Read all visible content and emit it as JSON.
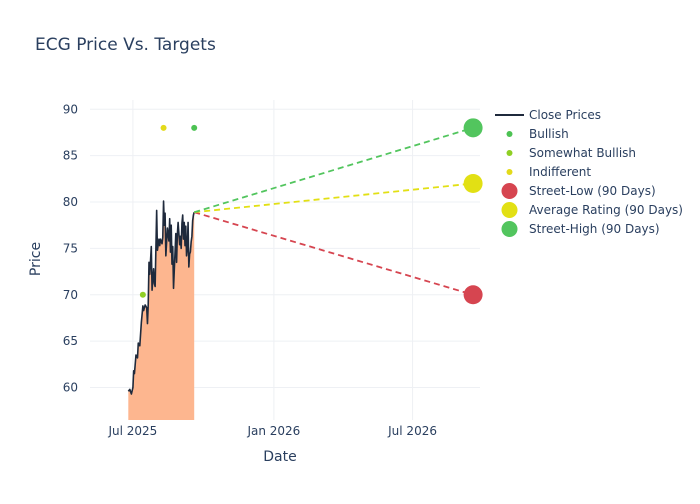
{
  "chart_data": {
    "type": "line",
    "title": "ECG Price Vs. Targets",
    "xlabel": "Date",
    "ylabel": "Price",
    "xlim": [
      "2025-05-06",
      "2026-09-27"
    ],
    "ylim": [
      56.5,
      91
    ],
    "x_ticks": [
      {
        "date": "2025-07-01",
        "label": "Jul 2025"
      },
      {
        "date": "2026-01-01",
        "label": "Jan 2026"
      },
      {
        "date": "2026-07-01",
        "label": "Jul 2026"
      }
    ],
    "y_ticks": [
      60,
      65,
      70,
      75,
      80,
      85,
      90
    ],
    "grid": true,
    "legend_position": "right",
    "colors": {
      "close": "#1f2a3c",
      "fill": "#fdb68f",
      "bullish": "#4cc253",
      "somewhat_bullish": "#8fcf24",
      "indifferent": "#e3da1a",
      "street_low": "#d64550",
      "average": "#e2e014",
      "street_high": "#52c55e",
      "title": "#2a3f5f",
      "grid": "#eef0f4"
    },
    "series": [
      {
        "name": "Close Prices",
        "kind": "line",
        "x": [
          "2025-06-25",
          "2025-06-27",
          "2025-06-29",
          "2025-07-01",
          "2025-07-02",
          "2025-07-03",
          "2025-07-05",
          "2025-07-07",
          "2025-07-08",
          "2025-07-10",
          "2025-07-12",
          "2025-07-14",
          "2025-07-15",
          "2025-07-17",
          "2025-07-19",
          "2025-07-20",
          "2025-07-21",
          "2025-07-22",
          "2025-07-23",
          "2025-07-25",
          "2025-07-26",
          "2025-07-28",
          "2025-07-29",
          "2025-07-30",
          "2025-08-01",
          "2025-08-02",
          "2025-08-04",
          "2025-08-05",
          "2025-08-06",
          "2025-08-08",
          "2025-08-09",
          "2025-08-10",
          "2025-08-11",
          "2025-08-12",
          "2025-08-13",
          "2025-08-15",
          "2025-08-17",
          "2025-08-18",
          "2025-08-19",
          "2025-08-20",
          "2025-08-21",
          "2025-08-22",
          "2025-08-23",
          "2025-08-25",
          "2025-08-26",
          "2025-08-27",
          "2025-08-28",
          "2025-08-29",
          "2025-08-31",
          "2025-09-01",
          "2025-09-02",
          "2025-09-03",
          "2025-09-04",
          "2025-09-05",
          "2025-09-06",
          "2025-09-07",
          "2025-09-08",
          "2025-09-09",
          "2025-09-10",
          "2025-09-11",
          "2025-09-12",
          "2025-09-13",
          "2025-09-14",
          "2025-09-15",
          "2025-09-16",
          "2025-09-17",
          "2025-09-18",
          "2025-09-19"
        ],
        "y": [
          59.6,
          59.8,
          59.3,
          60.0,
          61.8,
          61.5,
          63.5,
          63.2,
          64.8,
          64.5,
          67.0,
          68.8,
          68.3,
          68.9,
          68.6,
          66.9,
          69.0,
          73.5,
          72.2,
          75.2,
          70.5,
          72.8,
          71.2,
          70.9,
          79.1,
          74.8,
          76.0,
          75.3,
          76.0,
          75.5,
          76.2,
          80.1,
          77.5,
          78.8,
          74.2,
          77.2,
          75.8,
          78.2,
          74.6,
          77.5,
          73.3,
          75.2,
          70.7,
          74.6,
          76.6,
          73.5,
          76.5,
          77.8,
          75.4,
          76.3,
          75.0,
          77.7,
          78.6,
          76.0,
          77.8,
          75.3,
          77.4,
          74.2,
          75.0,
          77.8,
          73.0,
          74.4,
          74.6,
          75.7,
          76.3,
          78.0,
          78.6,
          78.9
        ]
      },
      {
        "name": "Bullish",
        "kind": "markers",
        "x": [
          "2025-09-19"
        ],
        "y": [
          88
        ]
      },
      {
        "name": "Somewhat Bullish",
        "kind": "markers",
        "x": [
          "2025-07-14"
        ],
        "y": [
          70
        ]
      },
      {
        "name": "Indifferent",
        "kind": "markers",
        "x": [
          "2025-08-10"
        ],
        "y": [
          88
        ]
      },
      {
        "name": "Street-Low (90 Days)",
        "kind": "target",
        "x": [
          "2025-09-19",
          "2026-09-18"
        ],
        "y": [
          78.9,
          70
        ]
      },
      {
        "name": "Average Rating (90 Days)",
        "kind": "target",
        "x": [
          "2025-09-19",
          "2026-09-18"
        ],
        "y": [
          78.9,
          82
        ]
      },
      {
        "name": "Street-High (90 Days)",
        "kind": "target",
        "x": [
          "2025-09-19",
          "2026-09-18"
        ],
        "y": [
          78.9,
          88
        ]
      }
    ]
  }
}
